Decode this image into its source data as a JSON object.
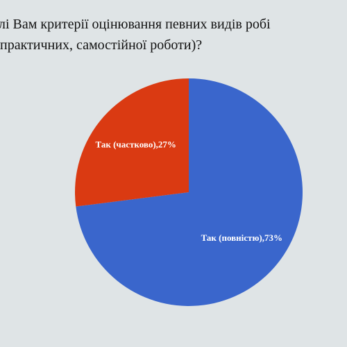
{
  "chart_data": {
    "type": "pie",
    "title": [
      "лі Вам критерії оцінювання  певних видів робі",
      "практичних, самостійної роботи)?"
    ],
    "values": [
      73,
      27
    ],
    "value_labels": [
      "Так (повністю),73%",
      "Так (частково),27%"
    ],
    "colors": [
      "#3a66cc",
      "#da3a12"
    ]
  }
}
